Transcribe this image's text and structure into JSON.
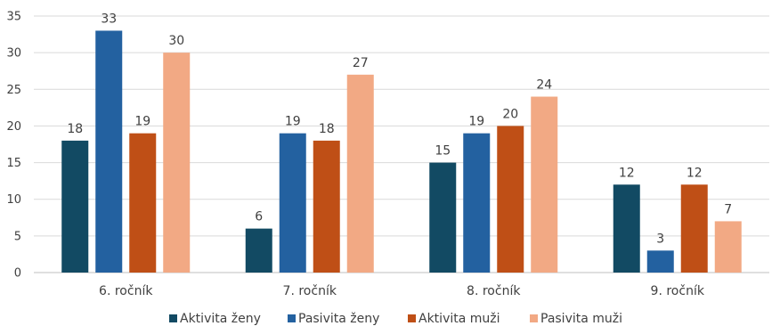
{
  "chart_data": {
    "type": "bar",
    "title": "",
    "xlabel": "",
    "ylabel": "",
    "ylim": [
      0,
      35
    ],
    "yticks": [
      0,
      5,
      10,
      15,
      20,
      25,
      30,
      35
    ],
    "grid": true,
    "legend_position": "bottom",
    "categories": [
      "6. ročník",
      "7. ročník",
      "8. ročník",
      "9. ročník"
    ],
    "series": [
      {
        "name": "Aktivita ženy",
        "color": "#124a63",
        "values": [
          18,
          6,
          15,
          12
        ]
      },
      {
        "name": "Pasivita ženy",
        "color": "#2361a0",
        "values": [
          33,
          19,
          19,
          3
        ]
      },
      {
        "name": "Aktivita muži",
        "color": "#bf4f16",
        "values": [
          19,
          18,
          20,
          12
        ]
      },
      {
        "name": "Pasivita muži",
        "color": "#f2a984",
        "values": [
          30,
          27,
          24,
          7
        ]
      }
    ]
  }
}
